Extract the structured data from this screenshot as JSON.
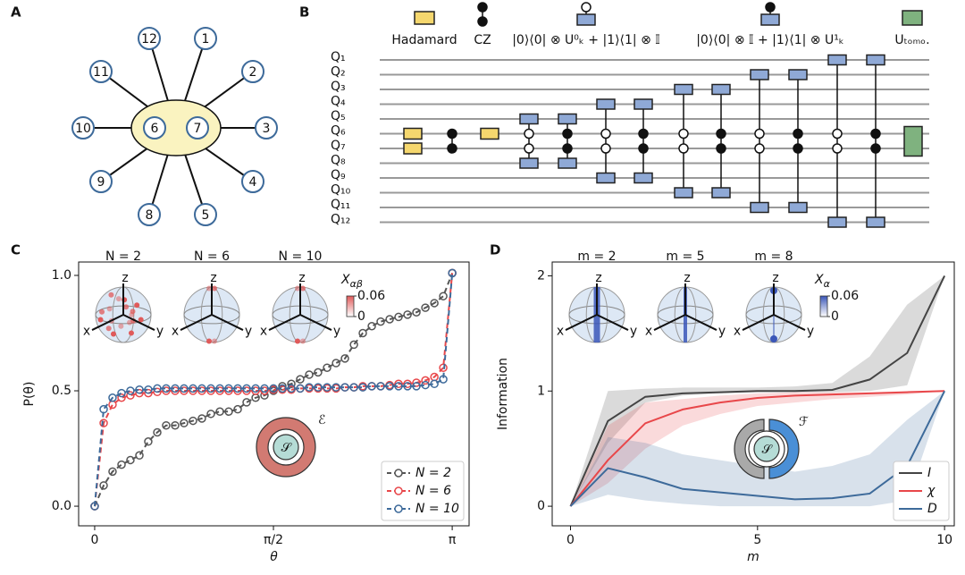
{
  "panel_labels": [
    "A",
    "B",
    "C",
    "D"
  ],
  "graph": {
    "nodes": [
      "1",
      "2",
      "3",
      "4",
      "5",
      "6",
      "7",
      "8",
      "9",
      "10",
      "11",
      "12"
    ]
  },
  "circuit": {
    "legend": [
      "Hadamard",
      "CZ",
      "|0⟩⟨0| ⊗ U⁰ₖ + |1⟩⟨1| ⊗ 𝕀",
      "|0⟩⟨0| ⊗ 𝕀 + |1⟩⟨1| ⊗ U¹ₖ",
      "Uₜₒₘₒ."
    ],
    "qubits": [
      "Q₁",
      "Q₂",
      "Q₃",
      "Q₄",
      "Q₅",
      "Q₆",
      "Q₇",
      "Q₈",
      "Q₉",
      "Q₁₀",
      "Q₁₁",
      "Q₁₂"
    ]
  },
  "chart_data": [
    {
      "type": "line",
      "xlabel": "θ",
      "ylabel": "P(θ)",
      "xlim": [
        -0.141,
        3.29
      ],
      "ylim": [
        -0.085,
        1.058
      ],
      "xticks": [
        0,
        {
          "value": 1.5708,
          "label": "π/2"
        },
        {
          "value": 3.1416,
          "label": "π"
        }
      ],
      "yticks": [
        {
          "value": 0,
          "label": "0.0"
        },
        0.5,
        {
          "value": 1,
          "label": "1.0"
        }
      ],
      "legend_loc": "lower right",
      "marker": "o",
      "linestyle": "dashed",
      "x": [
        0,
        0.079,
        0.157,
        0.236,
        0.314,
        0.393,
        0.471,
        0.55,
        0.628,
        0.707,
        0.785,
        0.864,
        0.942,
        1.021,
        1.1,
        1.178,
        1.257,
        1.335,
        1.414,
        1.492,
        1.571,
        1.649,
        1.728,
        1.806,
        1.885,
        1.963,
        2.042,
        2.121,
        2.199,
        2.278,
        2.356,
        2.435,
        2.513,
        2.592,
        2.67,
        2.749,
        2.827,
        2.906,
        2.985,
        3.063,
        3.142
      ],
      "series": [
        {
          "name": "N = 2",
          "color": "#555555",
          "values": [
            0,
            0.09,
            0.15,
            0.18,
            0.2,
            0.22,
            0.28,
            0.32,
            0.35,
            0.35,
            0.36,
            0.37,
            0.38,
            0.4,
            0.41,
            0.41,
            0.42,
            0.45,
            0.47,
            0.48,
            0.5,
            0.52,
            0.53,
            0.55,
            0.57,
            0.58,
            0.6,
            0.62,
            0.64,
            0.7,
            0.75,
            0.78,
            0.8,
            0.81,
            0.82,
            0.83,
            0.84,
            0.86,
            0.88,
            0.91,
            1.01
          ]
        },
        {
          "name": "N = 6",
          "color": "#e8474a",
          "values": [
            0,
            0.36,
            0.44,
            0.47,
            0.48,
            0.49,
            0.49,
            0.495,
            0.5,
            0.5,
            0.5,
            0.5,
            0.5,
            0.5,
            0.5,
            0.5,
            0.5,
            0.5,
            0.5,
            0.5,
            0.505,
            0.505,
            0.505,
            0.51,
            0.51,
            0.51,
            0.51,
            0.51,
            0.515,
            0.515,
            0.52,
            0.52,
            0.52,
            0.525,
            0.53,
            0.53,
            0.535,
            0.545,
            0.56,
            0.6,
            1.01
          ]
        },
        {
          "name": "N = 10",
          "color": "#3d6a9a",
          "values": [
            0,
            0.42,
            0.47,
            0.49,
            0.5,
            0.505,
            0.505,
            0.51,
            0.51,
            0.51,
            0.51,
            0.51,
            0.51,
            0.51,
            0.51,
            0.51,
            0.51,
            0.51,
            0.51,
            0.51,
            0.51,
            0.51,
            0.51,
            0.51,
            0.515,
            0.515,
            0.515,
            0.515,
            0.515,
            0.515,
            0.515,
            0.52,
            0.52,
            0.52,
            0.52,
            0.52,
            0.52,
            0.525,
            0.53,
            0.55,
            1.01
          ]
        }
      ],
      "insets": {
        "titles": [
          "N = 2",
          "N = 6",
          "N = 10"
        ],
        "axis_labels": [
          "z",
          "x",
          "y"
        ],
        "colorbar": {
          "symbol": "X",
          "subscript": "αβ",
          "ticks": [
            0,
            0.06
          ],
          "color": "#e05a5a"
        }
      },
      "schematic": {
        "system": "𝒮",
        "environment": "ℰ"
      }
    },
    {
      "type": "line",
      "xlabel": "m",
      "ylabel": "Information",
      "xlim": [
        -0.49,
        10.26
      ],
      "ylim": [
        -0.17,
        2.12
      ],
      "xticks": [
        0,
        5,
        10
      ],
      "yticks": [
        0,
        1,
        2
      ],
      "legend_loc": "lower right",
      "linestyle": "solid",
      "x": [
        0,
        1,
        2,
        3,
        4,
        5,
        6,
        7,
        8,
        9,
        10
      ],
      "series": [
        {
          "name": "I",
          "color": "#444444",
          "values": [
            0,
            0.74,
            0.95,
            0.98,
            0.99,
            1.0,
            1.0,
            1.01,
            1.1,
            1.33,
            2.0
          ],
          "band": {
            "upper": [
              0,
              1.0,
              1.02,
              1.03,
              1.03,
              1.03,
              1.04,
              1.07,
              1.3,
              1.75,
              2.0
            ],
            "lower": [
              0,
              0.55,
              0.9,
              0.96,
              0.98,
              0.99,
              0.99,
              0.99,
              1.0,
              1.05,
              2.0
            ]
          }
        },
        {
          "name": "χ",
          "color": "#e8474a",
          "values": [
            0,
            0.4,
            0.72,
            0.84,
            0.9,
            0.94,
            0.96,
            0.97,
            0.98,
            0.99,
            1.0
          ],
          "band": {
            "upper": [
              0,
              0.7,
              0.9,
              0.93,
              0.96,
              0.98,
              0.99,
              0.99,
              0.99,
              1.0,
              1.0
            ],
            "lower": [
              0,
              0.2,
              0.5,
              0.7,
              0.8,
              0.87,
              0.9,
              0.93,
              0.95,
              0.97,
              1.0
            ]
          }
        },
        {
          "name": "D",
          "color": "#3d6a9a",
          "values": [
            0,
            0.33,
            0.25,
            0.15,
            0.12,
            0.09,
            0.06,
            0.07,
            0.11,
            0.35,
            1.0
          ],
          "band": {
            "upper": [
              0,
              0.6,
              0.55,
              0.45,
              0.4,
              0.35,
              0.3,
              0.35,
              0.45,
              0.75,
              1.0
            ],
            "lower": [
              0,
              0.1,
              0.05,
              0.02,
              0,
              0,
              0,
              0,
              0,
              0.05,
              1.0
            ]
          }
        }
      ],
      "insets": {
        "titles": [
          "m = 2",
          "m = 5",
          "m = 8"
        ],
        "axis_labels": [
          "z",
          "x",
          "y"
        ],
        "colorbar": {
          "symbol": "X",
          "subscript": "α",
          "ticks": [
            0,
            0.06
          ],
          "color": "#3a56b8"
        }
      },
      "schematic": {
        "system": "𝒮",
        "environment": "ℱ"
      }
    }
  ]
}
